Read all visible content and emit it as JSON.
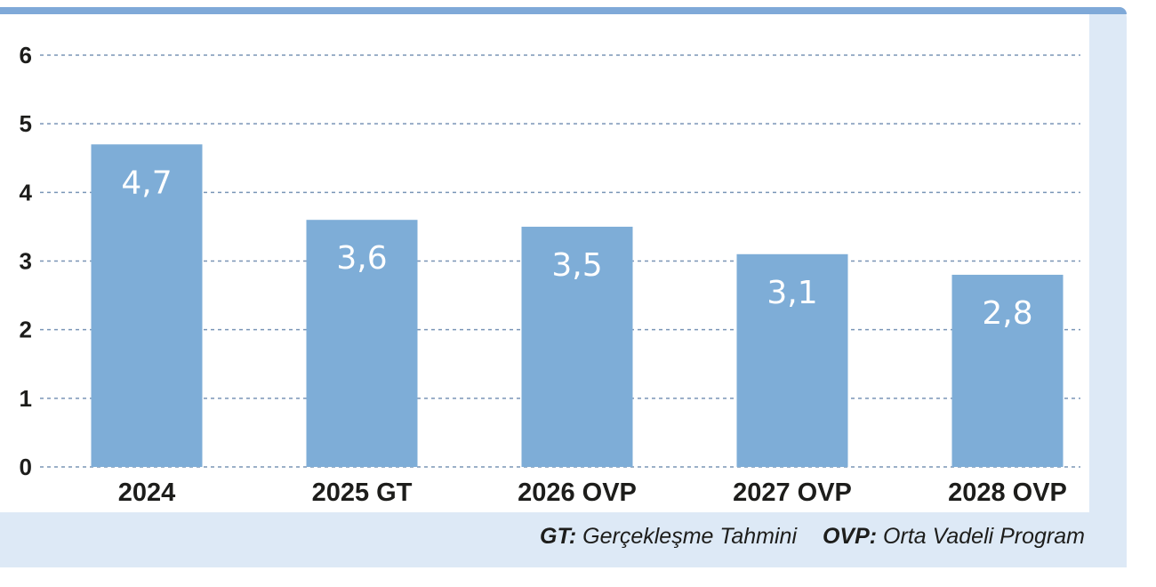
{
  "chart_data": {
    "type": "bar",
    "categories": [
      "2024",
      "2025 GT",
      "2026 OVP",
      "2027 OVP",
      "2028 OVP"
    ],
    "values": [
      4.7,
      3.6,
      3.5,
      3.1,
      2.8
    ],
    "value_labels": [
      "4,7",
      "3,6",
      "3,5",
      "3,1",
      "2,8"
    ],
    "ylim": [
      0,
      6
    ],
    "yticks": [
      "0",
      "1",
      "2",
      "3",
      "4",
      "5",
      "6"
    ],
    "grid": true,
    "bar_color": "#7eadd7",
    "grid_color": "#7a95b6"
  },
  "footnote": {
    "gt_abbr": "GT:",
    "gt_text": "Gerçekleşme Tahmini",
    "ovp_abbr": "OVP:",
    "ovp_text": "Orta Vadeli Program"
  }
}
